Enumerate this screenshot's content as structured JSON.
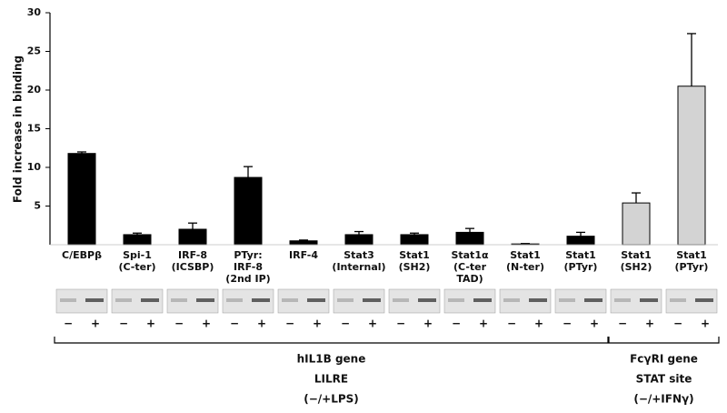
{
  "chart_data": {
    "type": "bar",
    "y_label": "Fold increase in binding",
    "categories": [
      [
        "C/EBPβ"
      ],
      [
        "Spi-1",
        "(C-ter)"
      ],
      [
        "IRF-8",
        "(ICSBP)"
      ],
      [
        "PTyr:",
        "IRF-8",
        "(2nd IP)"
      ],
      [
        "IRF-4"
      ],
      [
        "Stat3",
        "(Internal)"
      ],
      [
        "Stat1",
        "(SH2)"
      ],
      [
        "Stat1α",
        "(C-ter",
        "TAD)"
      ],
      [
        "Stat1",
        "(N-ter)"
      ],
      [
        "Stat1",
        "(PTyr)"
      ],
      [
        "Stat1",
        "(SH2)"
      ],
      [
        "Stat1",
        "(PTyr)"
      ]
    ],
    "values": [
      11.8,
      1.3,
      2.0,
      8.7,
      0.5,
      1.3,
      1.3,
      1.6,
      0.1,
      1.1,
      5.4,
      20.5
    ],
    "errors": [
      0.2,
      0.2,
      0.8,
      1.4,
      0.1,
      0.4,
      0.2,
      0.5,
      0.05,
      0.5,
      1.3,
      6.8
    ],
    "colors": [
      "#000000",
      "#000000",
      "#000000",
      "#000000",
      "#000000",
      "#000000",
      "#000000",
      "#000000",
      "#000000",
      "#000000",
      "#d3d3d3",
      "#d3d3d3"
    ],
    "ylim": [
      0,
      30
    ],
    "yticks": [
      5,
      10,
      15,
      20,
      25,
      30
    ],
    "lanes": [
      "−",
      "+"
    ],
    "groups": [
      {
        "first": 0,
        "last": 9,
        "lines": [
          "hIL1B gene",
          "LILRE",
          "(−/+LPS)"
        ]
      },
      {
        "first": 10,
        "last": 11,
        "lines": [
          "FcγRI gene",
          "STAT site",
          "(−/+IFNγ)"
        ]
      }
    ]
  }
}
